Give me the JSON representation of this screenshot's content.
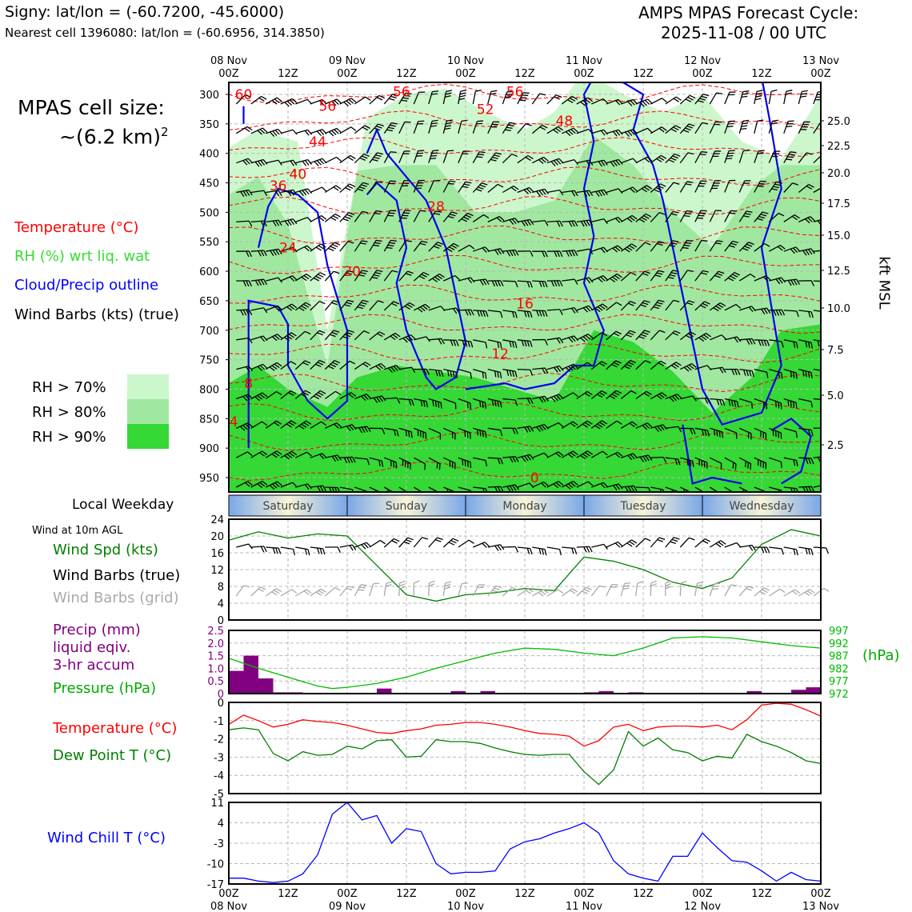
{
  "header": {
    "station_line": "Signy: lat/lon = (-60.7200, -45.6000)",
    "nearest_line": "Nearest cell 1396080: lat/lon = (-60.6956, 314.3850)",
    "cycle_title": "AMPS MPAS Forecast Cycle:",
    "cycle_time": "2025-11-08 / 00 UTC"
  },
  "cell_size": {
    "label": "MPAS cell size:",
    "value": "~(6.2 km)",
    "exponent": "2"
  },
  "legend": {
    "temperature": "Temperature (°C)",
    "rh": "RH (%) wrt liq. wat",
    "cloud": "Cloud/Precip outline",
    "barbs": "Wind Barbs (kts) (true)",
    "rh70": "RH > 70%",
    "rh80": "RH > 80%",
    "rh90": "RH > 90%"
  },
  "time_axis": {
    "top_labels": [
      {
        "day": "08 Nov",
        "hour": "00Z"
      },
      {
        "day": "",
        "hour": "12Z"
      },
      {
        "day": "09 Nov",
        "hour": "00Z"
      },
      {
        "day": "",
        "hour": "12Z"
      },
      {
        "day": "10 Nov",
        "hour": "00Z"
      },
      {
        "day": "",
        "hour": "12Z"
      },
      {
        "day": "11 Nov",
        "hour": "00Z"
      },
      {
        "day": "",
        "hour": "12Z"
      },
      {
        "day": "12 Nov",
        "hour": "00Z"
      },
      {
        "day": "",
        "hour": "12Z"
      },
      {
        "day": "13 Nov",
        "hour": "00Z"
      }
    ]
  },
  "weekday": {
    "label": "Local Weekday",
    "days": [
      "Saturday",
      "Sunday",
      "Monday",
      "Tuesday",
      "Wednesday"
    ]
  },
  "colors": {
    "rh70": "#ccf7cc",
    "rh80": "#a0e8a0",
    "rh90": "#35d835",
    "temperature": "#ff0000",
    "cloud": "#0000ee",
    "wind_speed": "#008000",
    "barb_grid": "#aaaaaa",
    "precip": "#800080",
    "pressure": "#00bb00",
    "dewpoint": "#008000",
    "windchill": "#0000ff"
  },
  "chart_data": [
    {
      "type": "heatmap",
      "panel": "cross-section",
      "ylabel_right": "kft MSL",
      "y_pressure_hPa": [
        300,
        350,
        400,
        450,
        500,
        550,
        600,
        650,
        700,
        750,
        800,
        850,
        900,
        950
      ],
      "y_right_kft": [
        "25.0",
        "22.5",
        "20.0",
        "17.5",
        "15.0",
        "12.5",
        "10.0",
        "7.5",
        "5.0",
        "2.5"
      ],
      "temperature_contour_labels": [
        "60",
        "56",
        "56",
        "52",
        "56",
        "48",
        "44",
        "40",
        "36",
        "28",
        "24",
        "20",
        "16",
        "12",
        "8",
        "4",
        "0"
      ],
      "grid": true
    },
    {
      "type": "line",
      "panel": "wind",
      "title": "Wind at 10m AGL",
      "labels": {
        "speed": "Wind Spd (kts)",
        "barbs_true": "Wind Barbs (true)",
        "barbs_grid": "Wind Barbs (grid)"
      },
      "ylim": [
        0,
        24
      ],
      "yticks": [
        "0",
        "4",
        "8",
        "12",
        "16",
        "20",
        "24"
      ],
      "x_hours": [
        0,
        6,
        12,
        18,
        24,
        30,
        36,
        42,
        48,
        54,
        60,
        66,
        72,
        78,
        84,
        90,
        96,
        102,
        108,
        114,
        120
      ],
      "series": [
        {
          "name": "Wind Spd (kts)",
          "values": [
            19,
            21,
            19.5,
            20.5,
            20,
            13,
            6,
            4.5,
            6,
            6.5,
            7.5,
            7,
            15,
            14,
            12,
            9,
            7.5,
            10,
            18,
            21.5,
            20
          ]
        }
      ]
    },
    {
      "type": "bar",
      "panel": "precip-pressure",
      "labels": {
        "precip": "Precip (mm)",
        "liquid": "liquid eqiv.",
        "accum": "3-hr accum",
        "pressure": "Pressure (hPa)",
        "unit": "(hPa)"
      },
      "precip_yticks": [
        "0",
        "0.5",
        "1.0",
        "1.5",
        "2.0",
        "2.5"
      ],
      "pressure_yticks": [
        "972",
        "977",
        "982",
        "987",
        "992",
        "997"
      ],
      "precip_ylim": [
        0,
        2.5
      ],
      "pressure_ylim": [
        972,
        997
      ],
      "precip": [
        {
          "h": 0,
          "v": 0.9
        },
        {
          "h": 3,
          "v": 1.5
        },
        {
          "h": 6,
          "v": 0.6
        },
        {
          "h": 9,
          "v": 0.05
        },
        {
          "h": 12,
          "v": 0.05
        },
        {
          "h": 30,
          "v": 0.2
        },
        {
          "h": 45,
          "v": 0.1
        },
        {
          "h": 51,
          "v": 0.1
        },
        {
          "h": 72,
          "v": 0.05
        },
        {
          "h": 75,
          "v": 0.1
        },
        {
          "h": 81,
          "v": 0.05
        },
        {
          "h": 105,
          "v": 0.1
        },
        {
          "h": 114,
          "v": 0.15
        },
        {
          "h": 117,
          "v": 0.25
        }
      ],
      "pressure": [
        {
          "h": 0,
          "v": 986
        },
        {
          "h": 6,
          "v": 982
        },
        {
          "h": 12,
          "v": 978.5
        },
        {
          "h": 18,
          "v": 975
        },
        {
          "h": 21,
          "v": 974
        },
        {
          "h": 24,
          "v": 974.5
        },
        {
          "h": 30,
          "v": 976
        },
        {
          "h": 36,
          "v": 978.5
        },
        {
          "h": 42,
          "v": 982
        },
        {
          "h": 48,
          "v": 985
        },
        {
          "h": 54,
          "v": 988
        },
        {
          "h": 60,
          "v": 990
        },
        {
          "h": 66,
          "v": 989.5
        },
        {
          "h": 72,
          "v": 988
        },
        {
          "h": 78,
          "v": 987
        },
        {
          "h": 84,
          "v": 990
        },
        {
          "h": 90,
          "v": 994
        },
        {
          "h": 96,
          "v": 994.5
        },
        {
          "h": 102,
          "v": 994
        },
        {
          "h": 108,
          "v": 992.5
        },
        {
          "h": 114,
          "v": 991
        },
        {
          "h": 120,
          "v": 990
        }
      ]
    },
    {
      "type": "line",
      "panel": "temperature-dewpoint",
      "labels": {
        "temperature": "Temperature (°C)",
        "dewpoint": "Dew Point T (°C)"
      },
      "ylim": [
        -5,
        0
      ],
      "yticks": [
        "0",
        "-1",
        "-2",
        "-3",
        "-4",
        "-5"
      ],
      "x_hours": [
        0,
        3,
        6,
        9,
        12,
        15,
        18,
        21,
        24,
        27,
        30,
        33,
        36,
        39,
        42,
        45,
        48,
        51,
        54,
        57,
        60,
        63,
        66,
        69,
        72,
        75,
        78,
        81,
        84,
        87,
        90,
        93,
        96,
        99,
        102,
        105,
        108,
        111,
        114,
        117,
        120
      ],
      "series": [
        {
          "name": "Temperature (°C)",
          "values": [
            -1.2,
            -0.7,
            -1.0,
            -1.35,
            -1.2,
            -0.95,
            -1.05,
            -1.1,
            -1.25,
            -1.45,
            -1.65,
            -1.7,
            -1.55,
            -1.45,
            -1.25,
            -1.2,
            -1.1,
            -1.1,
            -1.2,
            -1.35,
            -1.55,
            -1.7,
            -1.75,
            -1.85,
            -2.4,
            -2.1,
            -1.35,
            -1.2,
            -1.55,
            -1.35,
            -1.3,
            -1.3,
            -1.35,
            -1.25,
            -1.5,
            -0.95,
            -0.15,
            -0.05,
            -0.1,
            -0.4,
            -0.75
          ]
        },
        {
          "name": "Dew Point T (°C)",
          "values": [
            -1.5,
            -1.4,
            -1.5,
            -2.8,
            -3.2,
            -2.7,
            -2.9,
            -2.85,
            -2.4,
            -2.55,
            -2.1,
            -2.05,
            -3.0,
            -2.95,
            -2.05,
            -2.15,
            -2.15,
            -2.25,
            -2.5,
            -2.7,
            -2.85,
            -2.9,
            -2.85,
            -2.85,
            -3.8,
            -4.5,
            -3.7,
            -1.6,
            -2.4,
            -1.95,
            -2.6,
            -2.75,
            -3.2,
            -2.95,
            -3.05,
            -1.75,
            -2.15,
            -2.4,
            -2.75,
            -3.2,
            -3.35
          ]
        }
      ]
    },
    {
      "type": "line",
      "panel": "wind-chill",
      "labels": {
        "windchill": "Wind Chill T (°C)"
      },
      "ylim": [
        -17,
        11
      ],
      "yticks": [
        "11",
        "4",
        "-3",
        "-10",
        "-17"
      ],
      "x_hours": [
        0,
        3,
        6,
        9,
        12,
        15,
        18,
        21,
        24,
        27,
        30,
        33,
        36,
        39,
        42,
        45,
        48,
        51,
        54,
        57,
        60,
        63,
        66,
        69,
        72,
        75,
        78,
        81,
        84,
        87,
        90,
        93,
        96,
        99,
        102,
        105,
        108,
        111,
        114,
        117,
        120
      ],
      "series": [
        {
          "name": "Wind Chill T (°C)",
          "values": [
            -15,
            -15,
            -16,
            -16.5,
            -16,
            -13.5,
            -7,
            7,
            11,
            5,
            6.5,
            -3,
            2,
            1,
            -10,
            -13.5,
            -13,
            -13,
            -12.5,
            -5,
            -2.5,
            -1.5,
            0.5,
            2,
            4,
            0.5,
            -9,
            -13.5,
            -15,
            -16,
            -7.5,
            -7.5,
            0.5,
            -4.5,
            -9,
            -9.5,
            -12.5,
            -16,
            -13,
            -15.5,
            -16
          ]
        }
      ]
    }
  ]
}
